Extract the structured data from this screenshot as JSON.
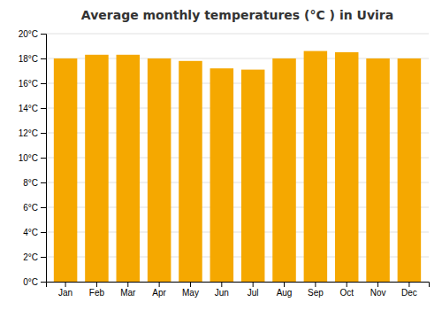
{
  "chart_data": {
    "type": "bar",
    "title": "Average monthly temperatures (°C ) in Uvira",
    "categories": [
      "Jan",
      "Feb",
      "Mar",
      "Apr",
      "May",
      "Jun",
      "Jul",
      "Aug",
      "Sep",
      "Oct",
      "Nov",
      "Dec"
    ],
    "values": [
      18.0,
      18.3,
      18.3,
      18.0,
      17.8,
      17.2,
      17.1,
      18.0,
      18.6,
      18.5,
      18.0,
      18.0
    ],
    "color": "#F5A800",
    "ylim": [
      0,
      20
    ],
    "yticks": [
      {
        "value": 0,
        "label": "0°C"
      },
      {
        "value": 2,
        "label": "2°C"
      },
      {
        "value": 4,
        "label": "4°C"
      },
      {
        "value": 6,
        "label": "6°C"
      },
      {
        "value": 8,
        "label": "8°C"
      },
      {
        "value": 10,
        "label": "10°C"
      },
      {
        "value": 12,
        "label": "12°C"
      },
      {
        "value": 14,
        "label": "14°C"
      },
      {
        "value": 16,
        "label": "16°C"
      },
      {
        "value": 18,
        "label": "18°C"
      },
      {
        "value": 20,
        "label": "20°C"
      }
    ],
    "grid": true
  }
}
